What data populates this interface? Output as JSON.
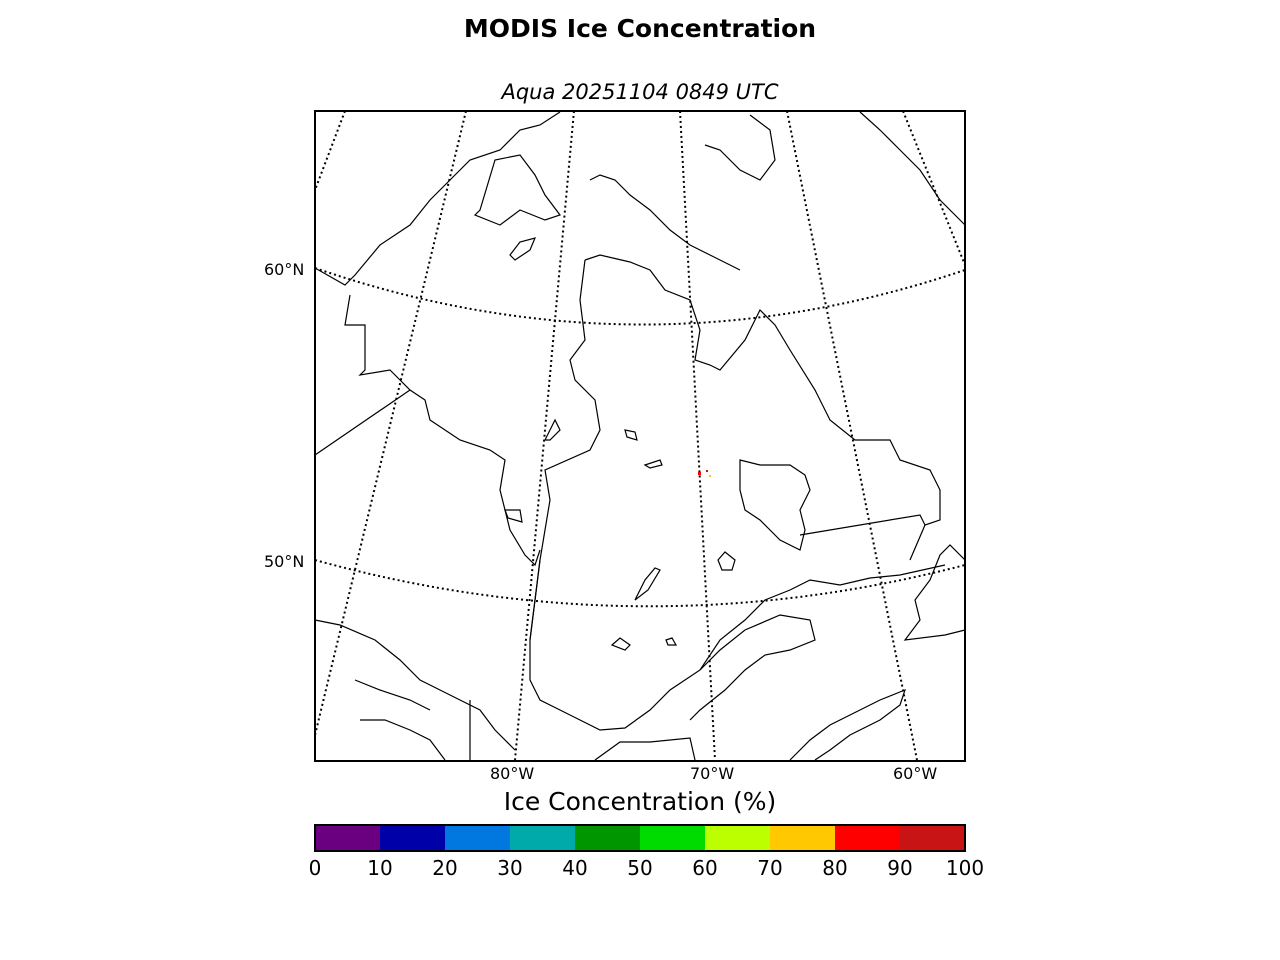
{
  "title": "MODIS Ice Concentration",
  "subtitle": "Aqua 20251104 0849 UTC",
  "lat_labels": [
    "60°N",
    "50°N"
  ],
  "lon_labels": [
    "80°W",
    "70°W",
    "60°W"
  ],
  "colorbar": {
    "label": "Ice Concentration (%)",
    "ticks": [
      "0",
      "10",
      "20",
      "30",
      "40",
      "50",
      "60",
      "70",
      "80",
      "90",
      "100"
    ],
    "colors": [
      "#6a007f",
      "#0000a8",
      "#0078e0",
      "#00aaaa",
      "#009600",
      "#00dc00",
      "#bcff00",
      "#ffc800",
      "#ff0000",
      "#c81414"
    ]
  },
  "colors": {
    "coastline": "#000000",
    "frame": "#000000",
    "graticule": "#000000"
  }
}
